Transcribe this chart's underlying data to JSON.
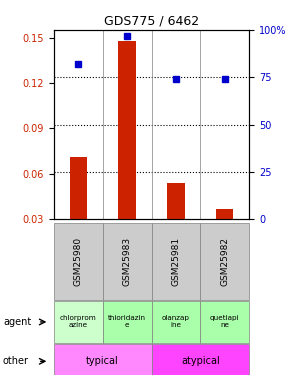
{
  "title": "GDS775 / 6462",
  "samples": [
    "GSM25980",
    "GSM25983",
    "GSM25981",
    "GSM25982"
  ],
  "log_ratio": [
    0.071,
    0.148,
    0.054,
    0.037
  ],
  "percentile_rank": [
    0.82,
    0.97,
    0.74,
    0.74
  ],
  "ylim_left": [
    0.03,
    0.155
  ],
  "ylim_right": [
    0,
    1.0
  ],
  "yticks_left": [
    0.03,
    0.06,
    0.09,
    0.12,
    0.15
  ],
  "yticks_right": [
    0,
    0.25,
    0.5,
    0.75,
    1.0
  ],
  "ytick_labels_right": [
    "0",
    "25",
    "50",
    "75",
    "100%"
  ],
  "bar_color": "#cc2200",
  "dot_color": "#0000cc",
  "agent_labels": [
    "chlorprom\nazine",
    "thioridazin\ne",
    "olanzap\nine",
    "quetiapi\nne"
  ],
  "agent_colors": [
    "#ccffcc",
    "#aaffaa",
    "#aaffaa",
    "#aaffaa"
  ],
  "other_labels": [
    "typical",
    "atypical"
  ],
  "other_colors": [
    "#ff88ff",
    "#ff44ff"
  ],
  "tick_label_color_left": "#cc2200",
  "tick_label_color_right": "#0000cc"
}
